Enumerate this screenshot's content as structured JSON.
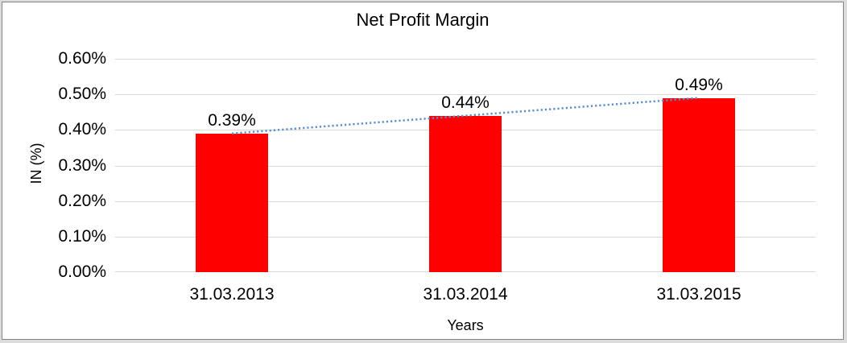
{
  "window": {
    "background_edge": "#dcdcdc",
    "frame_border": "#848484",
    "frame_background": "#ffffff"
  },
  "chart_data": {
    "type": "bar",
    "title": "Net Profit Margin",
    "xlabel": "Years",
    "ylabel": "IN (%)",
    "categories": [
      "31.03.2013",
      "31.03.2014",
      "31.03.2015"
    ],
    "series": [
      {
        "name": "Net Profit Margin",
        "values": [
          0.39,
          0.44,
          0.49
        ]
      }
    ],
    "data_labels": [
      "0.39%",
      "0.44%",
      "0.49%"
    ],
    "y_ticks_top_to_bottom": [
      "0.60%",
      "0.50%",
      "0.40%",
      "0.30%",
      "0.20%",
      "0.10%",
      "0.00%"
    ],
    "ylim": [
      0,
      0.6
    ],
    "grid": true,
    "legend": "none",
    "bar_color": "#FF0000",
    "gridline_color": "#D9D9D9",
    "text_color": "#000000",
    "trendline": {
      "type": "linear",
      "style": "dotted",
      "color": "#5B8FCC",
      "from_value": 0.39,
      "to_value": 0.49
    }
  }
}
